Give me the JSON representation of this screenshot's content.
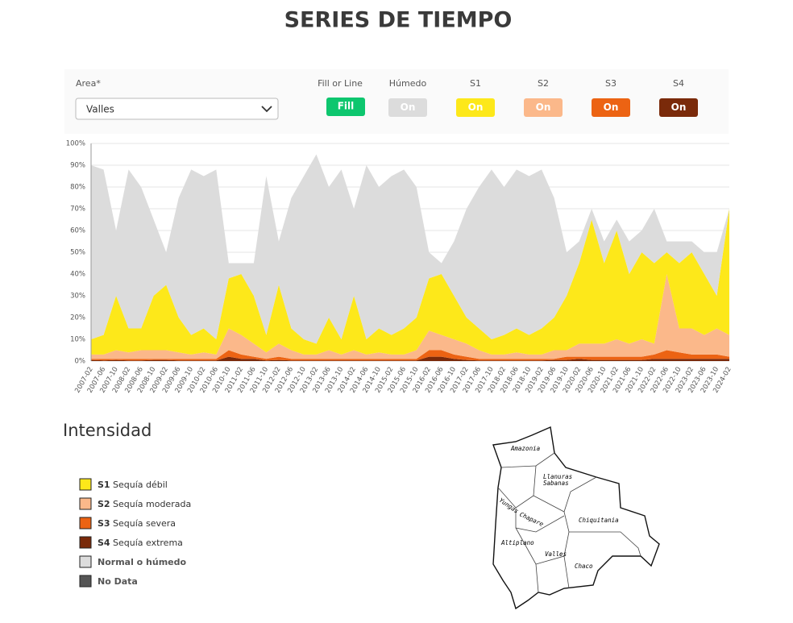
{
  "header": {
    "title": "SERIES DE TIEMPO"
  },
  "controls": {
    "area_label": "Area*",
    "area_value": "Valles",
    "mode_label": "Fill or Line",
    "mode_value": "Fill",
    "toggle_state": "On"
  },
  "chart_data": {
    "type": "stacked-area",
    "categories": [
      "2007-02",
      "2007-06",
      "2007-10",
      "2008-02",
      "2008-06",
      "2008-10",
      "2009-02",
      "2009-06",
      "2009-10",
      "2010-02",
      "2010-06",
      "2010-10",
      "2011-02",
      "2011-06",
      "2011-10",
      "2012-02",
      "2012-06",
      "2012-10",
      "2013-02",
      "2013-06",
      "2013-10",
      "2014-02",
      "2014-06",
      "2014-10",
      "2015-02",
      "2015-06",
      "2015-10",
      "2016-02",
      "2016-06",
      "2016-10",
      "2017-02",
      "2017-06",
      "2017-10",
      "2018-02",
      "2018-06",
      "2018-10",
      "2019-02",
      "2019-06",
      "2019-10",
      "2020-02",
      "2020-06",
      "2020-10",
      "2021-02",
      "2021-06",
      "2021-10",
      "2022-02",
      "2022-06",
      "2022-10",
      "2023-02",
      "2023-06",
      "2023-10",
      "2024-02"
    ],
    "series": [
      {
        "name": "S4",
        "color": "#7a2a0a",
        "values": [
          0.5,
          0.3,
          0.5,
          0.3,
          0.3,
          0.5,
          0.5,
          0.3,
          0.3,
          0.3,
          0.3,
          2,
          1,
          1,
          0.3,
          0.5,
          0.3,
          0.3,
          0.3,
          0.3,
          0.3,
          0.3,
          0.3,
          0.3,
          0.3,
          0.3,
          0.3,
          2,
          2,
          1,
          0.5,
          0.3,
          0.3,
          0.3,
          0.3,
          0.3,
          0.3,
          0.5,
          0.5,
          1,
          0.5,
          0.5,
          0.5,
          0.5,
          0.5,
          1,
          1,
          1,
          1,
          1,
          1,
          1
        ]
      },
      {
        "name": "S3",
        "color": "#ec6313",
        "values": [
          0.5,
          0.7,
          0.5,
          0.7,
          0.7,
          0.5,
          0.5,
          0.7,
          0.7,
          0.7,
          0.7,
          3,
          2,
          1,
          0.7,
          1.5,
          0.7,
          0.7,
          0.7,
          0.7,
          0.7,
          0.7,
          0.7,
          0.7,
          0.7,
          0.7,
          0.7,
          3,
          3,
          2,
          1.5,
          0.7,
          0.7,
          0.7,
          0.7,
          0.7,
          0.7,
          0.5,
          1.5,
          1,
          1.5,
          1.5,
          1.5,
          1.5,
          1.5,
          2,
          4,
          3,
          2,
          2,
          2,
          1
        ]
      },
      {
        "name": "S2",
        "color": "#fbb88a",
        "values": [
          2,
          2,
          4,
          3,
          4,
          4,
          4,
          3,
          2,
          3,
          2,
          10,
          9,
          6,
          3,
          6,
          4,
          2,
          2,
          4,
          2,
          4,
          2,
          3,
          2,
          2,
          4,
          9,
          7,
          7,
          6,
          4,
          2,
          2,
          3,
          2,
          2,
          4,
          3,
          6,
          6,
          6,
          8,
          6,
          8,
          5,
          35,
          11,
          12,
          9,
          12,
          10
        ]
      },
      {
        "name": "S1",
        "color": "#fde81a",
        "values": [
          7,
          9,
          25,
          11,
          10,
          25,
          30,
          16,
          9,
          11,
          7,
          23,
          28,
          22,
          8,
          27,
          10,
          7,
          5,
          15,
          7,
          25,
          7,
          11,
          9,
          12,
          15,
          24,
          28,
          20,
          12,
          10,
          7,
          9,
          11,
          9,
          12,
          15,
          25,
          37,
          57,
          37,
          50,
          32,
          40,
          37,
          10,
          30,
          35,
          28,
          15,
          58
        ]
      },
      {
        "name": "Húmedo",
        "color": "#dcdcdc",
        "values": [
          80,
          76,
          30,
          73,
          65,
          35,
          15,
          55,
          76,
          70,
          78,
          7,
          5,
          15,
          73,
          20,
          60,
          75,
          87,
          60,
          78,
          40,
          80,
          65,
          73,
          73,
          60,
          12,
          5,
          25,
          50,
          65,
          78,
          68,
          73,
          73,
          73,
          55,
          20,
          10,
          5,
          10,
          5,
          15,
          10,
          25,
          5,
          10,
          5,
          10,
          20,
          0
        ]
      }
    ],
    "ylim": [
      0,
      100
    ],
    "yticks": [
      {
        "value": 0,
        "label": "0%"
      },
      {
        "value": 10,
        "label": "10%"
      },
      {
        "value": 20,
        "label": "20%"
      },
      {
        "value": 30,
        "label": "30%"
      },
      {
        "value": 40,
        "label": "40%"
      },
      {
        "value": 50,
        "label": "50%"
      },
      {
        "value": 60,
        "label": "60%"
      },
      {
        "value": 70,
        "label": "70%"
      },
      {
        "value": 80,
        "label": "80%"
      },
      {
        "value": 90,
        "label": "90%"
      },
      {
        "value": 100,
        "label": "100%"
      }
    ],
    "grid": true
  },
  "legend": {
    "title": "Intensidad",
    "items": [
      {
        "code": "S1",
        "label": "Sequía débil",
        "color": "#fde81a"
      },
      {
        "code": "S2",
        "label": "Sequía moderada",
        "color": "#fbb88a"
      },
      {
        "code": "S3",
        "label": "Sequía severa",
        "color": "#ec6313"
      },
      {
        "code": "S4",
        "label": "Sequía extrema",
        "color": "#7a2a0a"
      },
      {
        "label": "Normal o húmedo",
        "color": "#dcdcdc"
      },
      {
        "label": "No Data",
        "color": "#555555"
      }
    ]
  },
  "map": {
    "regions": [
      "Amazonia",
      "Llanuras",
      "Sabanas",
      "Yungas",
      "Chapare",
      "Chiquitania",
      "Altiplano",
      "Valles",
      "Chaco"
    ]
  }
}
